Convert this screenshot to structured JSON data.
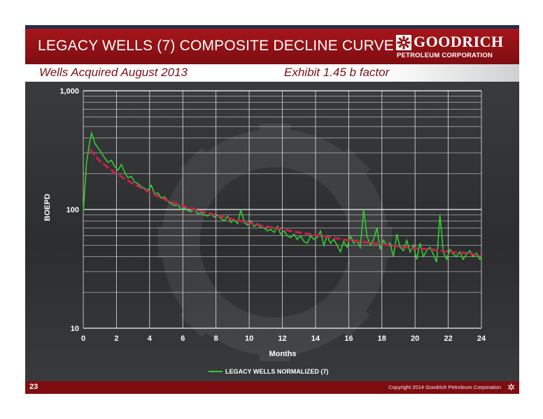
{
  "header": {
    "title": "LEGACY WELLS (7) COMPOSITE DECLINE CURVE",
    "logo_name": "GOODRICH",
    "logo_sub": "PETROLEUM CORPORATION"
  },
  "subheader": {
    "left": "Wells Acquired August 2013",
    "right": "Exhibit 1.45 b factor"
  },
  "footer": {
    "page_number": "23",
    "copyright": "Copyright 2014 Goodrich Petroleum Corporation",
    "icon": "gear-icon"
  },
  "colors": {
    "header_red": "#8f1216",
    "actual_series": "#33cc33",
    "type_curve": "#cc1f4f"
  },
  "chart_data": {
    "type": "line",
    "title": "",
    "xlabel": "Months",
    "ylabel": "BOEPD",
    "y_scale": "log",
    "xlim": [
      0,
      24
    ],
    "ylim": [
      10,
      1000
    ],
    "x_ticks": [
      "0",
      "2",
      "4",
      "6",
      "8",
      "10",
      "12",
      "14",
      "16",
      "18",
      "20",
      "22",
      "24"
    ],
    "y_ticks": [
      "10",
      "100",
      "1,000"
    ],
    "grid": true,
    "legend_position": "bottom",
    "series": [
      {
        "name": "LEGACY WELLS NORMALIZED (7)",
        "style": "solid",
        "x": [
          0,
          0.2,
          0.4,
          0.5,
          0.7,
          0.9,
          1.1,
          1.3,
          1.5,
          1.7,
          1.9,
          2.1,
          2.3,
          2.5,
          2.7,
          2.9,
          3.1,
          3.3,
          3.5,
          3.7,
          3.9,
          4.1,
          4.3,
          4.5,
          4.7,
          4.9,
          5.1,
          5.3,
          5.5,
          5.7,
          5.9,
          6.1,
          6.3,
          6.5,
          6.7,
          6.9,
          7.1,
          7.3,
          7.5,
          7.7,
          7.9,
          8.1,
          8.3,
          8.5,
          8.7,
          8.9,
          9.1,
          9.3,
          9.5,
          9.7,
          9.9,
          10.1,
          10.3,
          10.5,
          10.7,
          10.9,
          11.1,
          11.3,
          11.5,
          11.7,
          11.9,
          12.1,
          12.3,
          12.5,
          12.7,
          12.9,
          13.1,
          13.3,
          13.5,
          13.7,
          13.9,
          14.1,
          14.3,
          14.5,
          14.7,
          14.9,
          15.1,
          15.3,
          15.5,
          15.7,
          15.9,
          16.1,
          16.3,
          16.5,
          16.7,
          16.9,
          17.1,
          17.3,
          17.5,
          17.7,
          17.9,
          18.1,
          18.3,
          18.5,
          18.7,
          18.9,
          19.1,
          19.3,
          19.5,
          19.7,
          19.9,
          20.1,
          20.3,
          20.5,
          20.7,
          20.9,
          21.1,
          21.3,
          21.5,
          21.7,
          21.9,
          22.1,
          22.3,
          22.5,
          22.7,
          22.9,
          23.1,
          23.3,
          23.5,
          23.7,
          23.9,
          24
        ],
        "values": [
          95,
          250,
          380,
          440,
          360,
          330,
          300,
          270,
          250,
          260,
          230,
          215,
          240,
          205,
          185,
          190,
          170,
          165,
          155,
          150,
          145,
          160,
          135,
          138,
          125,
          128,
          118,
          112,
          108,
          110,
          100,
          104,
          98,
          96,
          102,
          92,
          94,
          90,
          88,
          92,
          86,
          90,
          84,
          80,
          88,
          78,
          82,
          76,
          100,
          78,
          74,
          80,
          72,
          76,
          70,
          70,
          66,
          68,
          64,
          72,
          62,
          66,
          60,
          58,
          62,
          56,
          60,
          54,
          52,
          60,
          56,
          58,
          66,
          50,
          60,
          52,
          56,
          50,
          44,
          54,
          48,
          60,
          52,
          55,
          48,
          100,
          60,
          50,
          56,
          70,
          46,
          55,
          50,
          52,
          40,
          62,
          48,
          45,
          55,
          44,
          50,
          38,
          52,
          40,
          45,
          48,
          42,
          36,
          90,
          44,
          38,
          46,
          42,
          40,
          44,
          38,
          42,
          45,
          40,
          43,
          38,
          40
        ]
      },
      {
        "name": "",
        "style": "dashed",
        "x": [
          0.4,
          1,
          1.5,
          2,
          3,
          4,
          5,
          6,
          7,
          8,
          9,
          10,
          11,
          12,
          13,
          14,
          15,
          16,
          17,
          18,
          19,
          20,
          21,
          22,
          23,
          24
        ],
        "values": [
          320,
          255,
          225,
          200,
          165,
          140,
          120,
          107,
          97,
          90,
          83,
          77,
          72,
          68,
          64,
          61,
          58,
          55,
          53,
          51,
          49,
          47,
          46,
          44,
          43,
          41
        ]
      }
    ]
  }
}
